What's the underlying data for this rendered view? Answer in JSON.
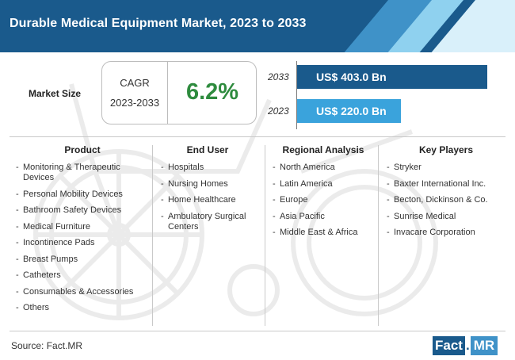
{
  "title": "Durable Medical Equipment Market, 2023 to 2033",
  "market_size": {
    "label": "Market Size",
    "cagr_label": "CAGR",
    "cagr_period": "2023-2033",
    "cagr_value": "6.2%"
  },
  "chart_data": {
    "type": "bar",
    "orientation": "horizontal",
    "categories": [
      "2033",
      "2023"
    ],
    "values": [
      403.0,
      220.0
    ],
    "value_labels": [
      "US$ 403.0 Bn",
      "US$ 220.0 Bn"
    ],
    "bar_colors": [
      "#1a5a8c",
      "#3aa3dc"
    ],
    "xlim": [
      0,
      403.0
    ]
  },
  "columns": [
    {
      "title": "Product",
      "items": [
        "Monitoring & Therapeutic Devices",
        "Personal Mobility Devices",
        "Bathroom Safety Devices",
        "Medical Furniture",
        "Incontinence Pads",
        "Breast Pumps",
        "Catheters",
        "Consumables & Accessories",
        "Others"
      ]
    },
    {
      "title": "End User",
      "items": [
        "Hospitals",
        "Nursing Homes",
        "Home Healthcare",
        "Ambulatory Surgical Centers"
      ]
    },
    {
      "title": "Regional Analysis",
      "items": [
        "North America",
        "Latin America",
        "Europe",
        "Asia Pacific",
        "Middle East & Africa"
      ]
    },
    {
      "title": "Key Players",
      "items": [
        "Stryker",
        "Baxter International Inc.",
        "Becton, Dickinson & Co.",
        "Sunrise Medical",
        "Invacare Corporation"
      ]
    }
  ],
  "footer": {
    "source": "Source: Fact.MR",
    "logo_fact": "Fact",
    "logo_dot": ".",
    "logo_mr": "MR"
  },
  "colors": {
    "header": "#1a5a8c",
    "accent": "#3f92c8",
    "light": "#8fd1ef",
    "cagr": "#2e8b3e"
  }
}
